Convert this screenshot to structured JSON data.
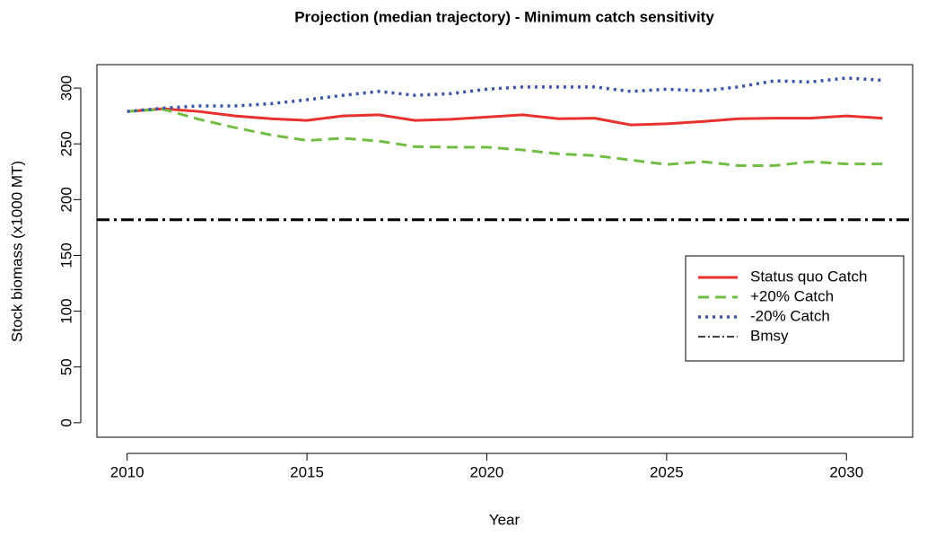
{
  "chart_data": {
    "type": "line",
    "title": "Projection (median trajectory) - Minimum catch sensitivity",
    "x_label": "Year",
    "y_label": "Stock biomass (x1000 MT)",
    "x": [
      2010,
      2011,
      2012,
      2013,
      2014,
      2015,
      2016,
      2017,
      2018,
      2019,
      2020,
      2021,
      2022,
      2023,
      2024,
      2025,
      2026,
      2027,
      2028,
      2029,
      2030,
      2031
    ],
    "series": [
      {
        "name": "Status quo Catch",
        "color": "#e8312c",
        "style": "solid",
        "values": [
          279,
          281.5,
          279,
          275,
          272.5,
          271,
          275,
          276,
          271,
          272,
          274,
          276,
          272.5,
          273,
          267,
          268,
          270,
          272.5,
          273,
          273,
          275,
          273
        ]
      },
      {
        "name": "+20% Catch",
        "color": "#72be44",
        "style": "dashed",
        "values": [
          279,
          281,
          272,
          264.5,
          258,
          253,
          255,
          252.5,
          247.5,
          247,
          247,
          244.5,
          241,
          239.5,
          235.5,
          231.5,
          234,
          230.5,
          230.5,
          234,
          232,
          232
        ]
      },
      {
        "name": "-20% Catch",
        "color": "#3a55a6",
        "style": "dotted",
        "values": [
          279,
          282,
          284,
          284,
          286,
          289.5,
          293.5,
          297,
          293.5,
          295,
          299,
          301,
          301,
          301,
          297,
          299,
          297.5,
          301,
          306.5,
          305.5,
          309,
          307
        ]
      }
    ],
    "reference_lines": [
      {
        "name": "Bmsy",
        "value": 182,
        "color": "#000000",
        "style": "dotdash"
      }
    ],
    "xlim": [
      2009.16,
      2031.84
    ],
    "xticks": [
      2010,
      2015,
      2020,
      2025,
      2030
    ],
    "ylim": [
      -13,
      321
    ],
    "yticks": [
      0,
      50,
      100,
      150,
      200,
      250,
      300
    ],
    "legend_position": "right"
  }
}
